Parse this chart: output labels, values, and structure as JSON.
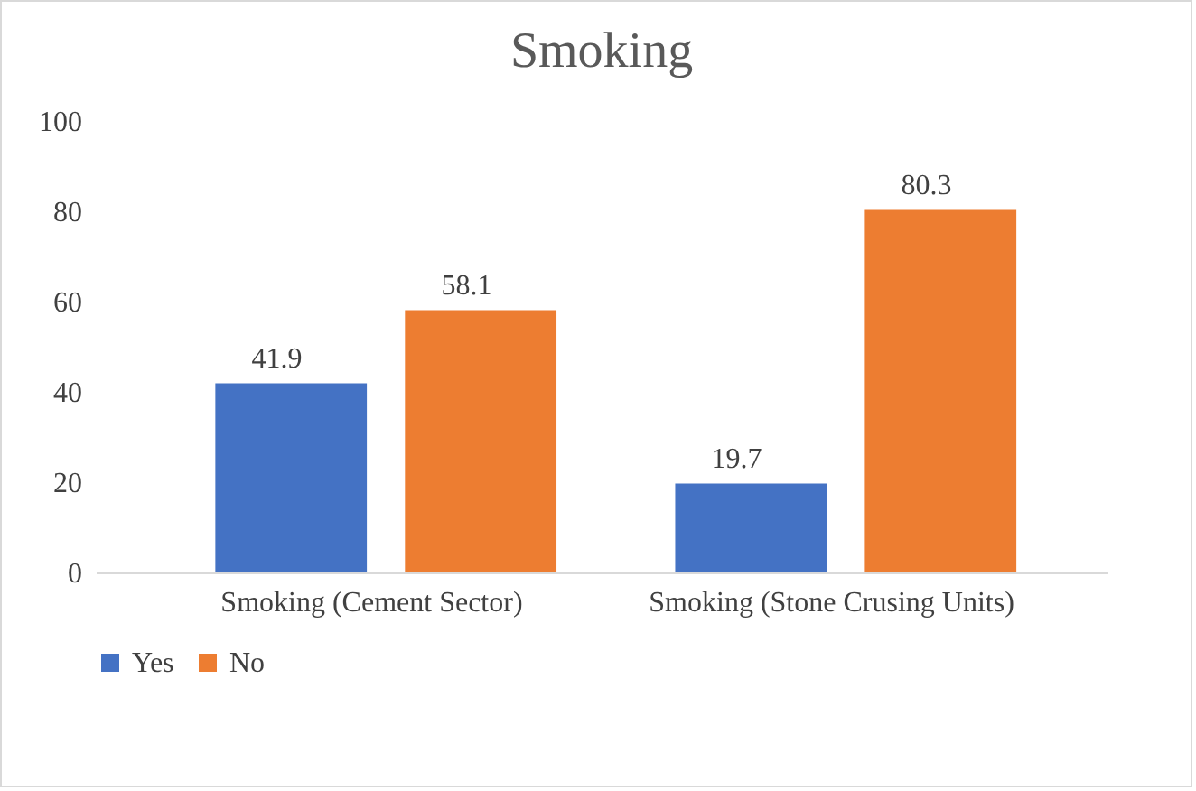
{
  "chart_data": {
    "type": "bar",
    "title": "Smoking",
    "categories": [
      "Smoking (Cement Sector)",
      "Smoking (Stone Crusing Units)"
    ],
    "series": [
      {
        "name": "Yes",
        "color": "#4472c4",
        "values": [
          41.9,
          19.7
        ]
      },
      {
        "name": "No",
        "color": "#ed7d31",
        "values": [
          58.1,
          80.3
        ]
      }
    ],
    "ylim": [
      0,
      100
    ],
    "yticks": [
      0,
      20,
      40,
      60,
      80,
      100
    ],
    "grid": false,
    "legend": "bottom",
    "data_labels": true
  }
}
